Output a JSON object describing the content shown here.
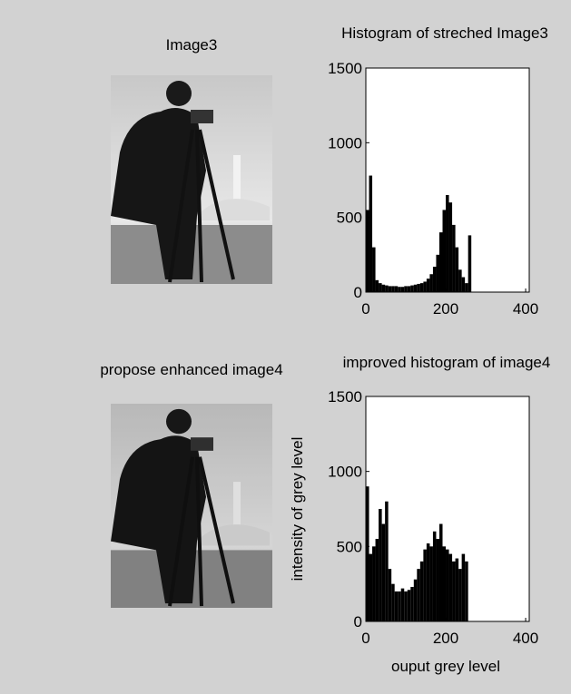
{
  "chart_data": [
    {
      "type": "image",
      "title": "Image3"
    },
    {
      "type": "histogram",
      "title": "Histogram of streched Image3",
      "color": "#000000",
      "bins": [
        0,
        8,
        16,
        24,
        32,
        40,
        48,
        56,
        64,
        72,
        80,
        88,
        96,
        104,
        112,
        120,
        128,
        136,
        144,
        152,
        160,
        168,
        176,
        184,
        192,
        200,
        208,
        216,
        224,
        232,
        240,
        248,
        256,
        264
      ],
      "values": [
        550,
        780,
        300,
        80,
        60,
        50,
        45,
        40,
        40,
        40,
        35,
        35,
        40,
        40,
        45,
        50,
        55,
        60,
        70,
        90,
        120,
        170,
        250,
        400,
        550,
        650,
        600,
        450,
        300,
        150,
        100,
        60,
        380
      ],
      "xlim": [
        0,
        400
      ],
      "ylim": [
        0,
        1500
      ],
      "xticks": [
        0,
        200,
        400
      ],
      "yticks": [
        0,
        500,
        1000,
        1500
      ]
    },
    {
      "type": "image",
      "title": "propose enhanced image4"
    },
    {
      "type": "histogram",
      "title": "improved histogram of image4",
      "xlabel": "ouput grey level",
      "ylabel": "intensity of grey level",
      "color": "#000000",
      "bins": [
        0,
        8,
        16,
        24,
        32,
        40,
        48,
        56,
        64,
        72,
        80,
        88,
        96,
        104,
        112,
        120,
        128,
        136,
        144,
        152,
        160,
        168,
        176,
        184,
        192,
        200,
        208,
        216,
        224,
        232,
        240,
        248,
        256
      ],
      "values": [
        900,
        450,
        500,
        550,
        750,
        650,
        800,
        350,
        250,
        200,
        200,
        220,
        200,
        210,
        230,
        280,
        350,
        400,
        480,
        520,
        500,
        600,
        550,
        650,
        500,
        480,
        450,
        400,
        420,
        350,
        450,
        400
      ],
      "xlim": [
        0,
        400
      ],
      "ylim": [
        0,
        1500
      ],
      "xticks": [
        0,
        200,
        400
      ],
      "yticks": [
        0,
        500,
        1000,
        1500
      ]
    }
  ]
}
